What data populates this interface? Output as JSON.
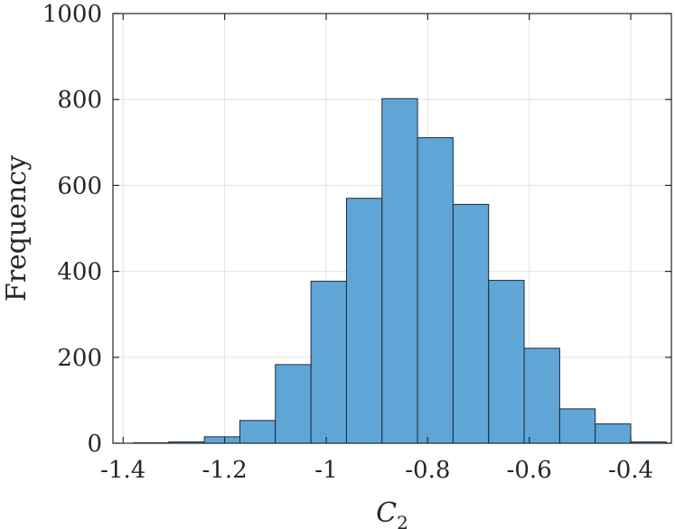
{
  "chart_data": {
    "type": "bar",
    "subtype": "histogram",
    "xlabel_base": "C",
    "xlabel_subscript": "2",
    "ylabel": "Frequency",
    "xlim": [
      -1.42,
      -0.32
    ],
    "ylim": [
      0,
      1000
    ],
    "xticks": [
      -1.4,
      -1.2,
      -1.0,
      -0.8,
      -0.6,
      -0.4
    ],
    "xtick_labels": [
      "-1.4",
      "-1.2",
      "-1",
      "-0.8",
      "-0.6",
      "-0.4"
    ],
    "yticks": [
      0,
      200,
      400,
      600,
      800,
      1000
    ],
    "ytick_labels": [
      "0",
      "200",
      "400",
      "600",
      "800",
      "1000"
    ],
    "grid": true,
    "bar_color": "#5fa6d7",
    "bins": [
      {
        "x0": -1.38,
        "x1": -1.31,
        "value": 1
      },
      {
        "x0": -1.31,
        "x1": -1.24,
        "value": 3
      },
      {
        "x0": -1.24,
        "x1": -1.17,
        "value": 15
      },
      {
        "x0": -1.17,
        "x1": -1.1,
        "value": 53
      },
      {
        "x0": -1.1,
        "x1": -1.03,
        "value": 183
      },
      {
        "x0": -1.03,
        "x1": -0.96,
        "value": 377
      },
      {
        "x0": -0.96,
        "x1": -0.89,
        "value": 570
      },
      {
        "x0": -0.89,
        "x1": -0.82,
        "value": 802
      },
      {
        "x0": -0.82,
        "x1": -0.75,
        "value": 711
      },
      {
        "x0": -0.75,
        "x1": -0.68,
        "value": 556
      },
      {
        "x0": -0.68,
        "x1": -0.61,
        "value": 379
      },
      {
        "x0": -0.61,
        "x1": -0.54,
        "value": 221
      },
      {
        "x0": -0.54,
        "x1": -0.47,
        "value": 80
      },
      {
        "x0": -0.47,
        "x1": -0.4,
        "value": 45
      },
      {
        "x0": -0.4,
        "x1": -0.33,
        "value": 3
      }
    ]
  }
}
